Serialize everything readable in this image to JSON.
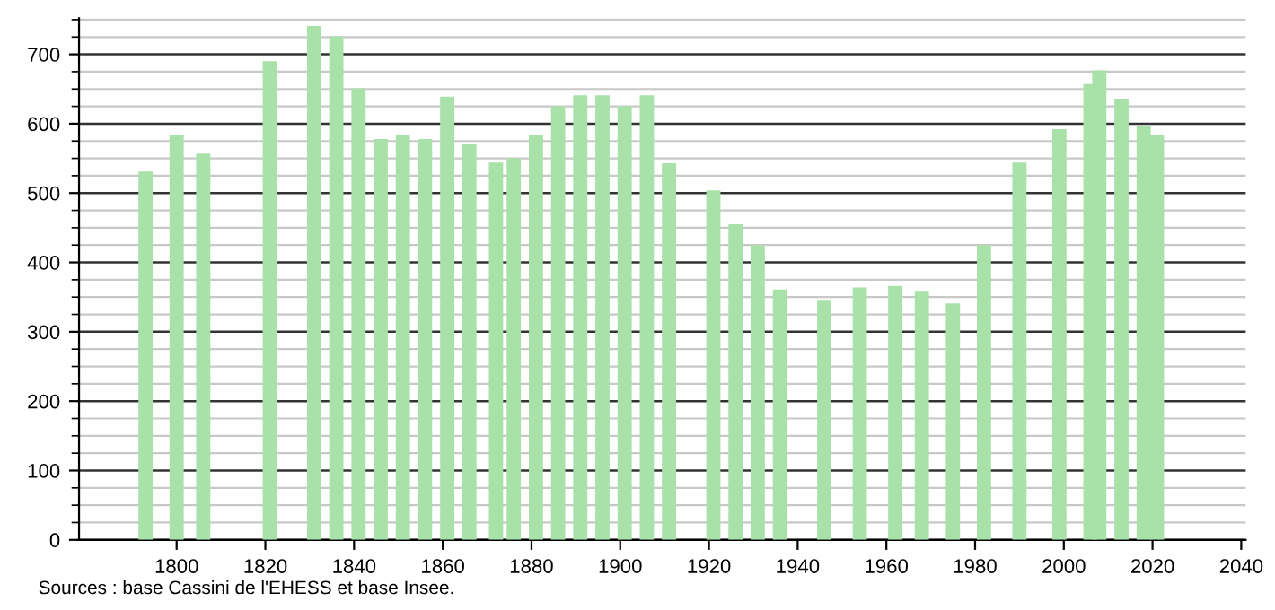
{
  "chart_data": {
    "type": "bar",
    "x": [
      1793,
      1800,
      1806,
      1821,
      1831,
      1836,
      1841,
      1846,
      1851,
      1856,
      1861,
      1866,
      1872,
      1876,
      1881,
      1886,
      1891,
      1896,
      1901,
      1906,
      1911,
      1921,
      1926,
      1931,
      1936,
      1946,
      1954,
      1962,
      1968,
      1975,
      1982,
      1990,
      1999,
      2006,
      2008,
      2013,
      2018,
      2021
    ],
    "values": [
      531,
      583,
      557,
      690,
      741,
      726,
      651,
      578,
      583,
      578,
      639,
      571,
      544,
      550,
      583,
      625,
      641,
      641,
      625,
      641,
      543,
      504,
      455,
      425,
      361,
      346,
      364,
      366,
      359,
      341,
      425,
      544,
      592,
      657,
      677,
      636,
      596,
      584
    ],
    "color": "#a8e2a8",
    "xlim": [
      1778,
      2041
    ],
    "xticks": [
      1800,
      1820,
      1840,
      1860,
      1880,
      1900,
      1920,
      1940,
      1960,
      1980,
      2000,
      2020,
      2040
    ],
    "ylim": [
      0,
      752
    ],
    "yticks": [
      0,
      100,
      200,
      300,
      400,
      500,
      600,
      700
    ],
    "grid": "y",
    "legend": false,
    "annotations": [
      "Sources : base Cassini de l'EHESS et base Insee."
    ]
  }
}
